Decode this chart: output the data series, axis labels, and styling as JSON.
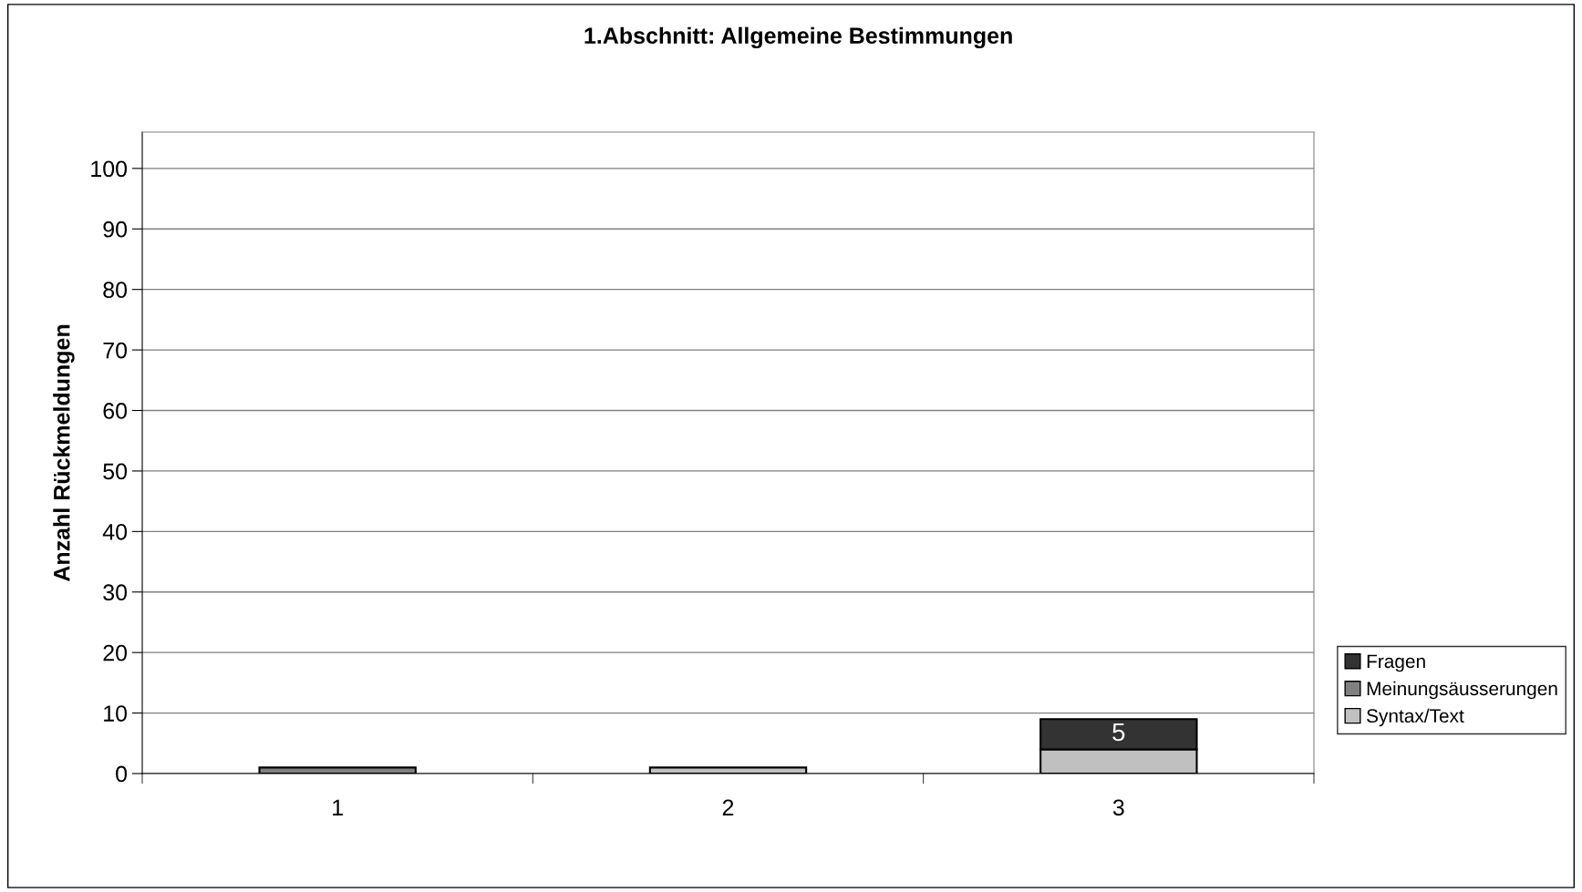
{
  "chart_data": {
    "type": "bar",
    "title": "1.Abschnitt: Allgemeine Bestimmungen",
    "ylabel": "Anzahl Rückmeldungen",
    "categories": [
      "1",
      "2",
      "3"
    ],
    "stacked": true,
    "series": [
      {
        "name": "Syntax/Text",
        "color": "#c0c0c0",
        "values": [
          null,
          1,
          4
        ]
      },
      {
        "name": "Meinungsäusserungen",
        "color": "#808080",
        "values": [
          1,
          null,
          null
        ]
      },
      {
        "name": "Fragen",
        "color": "#333333",
        "values": [
          null,
          null,
          5
        ],
        "value_labels": [
          null,
          null,
          "5"
        ]
      }
    ],
    "ylim": [
      0,
      106
    ],
    "yticks": [
      0,
      10,
      20,
      30,
      40,
      50,
      60,
      70,
      80,
      90,
      100
    ],
    "grid": "y",
    "legend": "right"
  }
}
